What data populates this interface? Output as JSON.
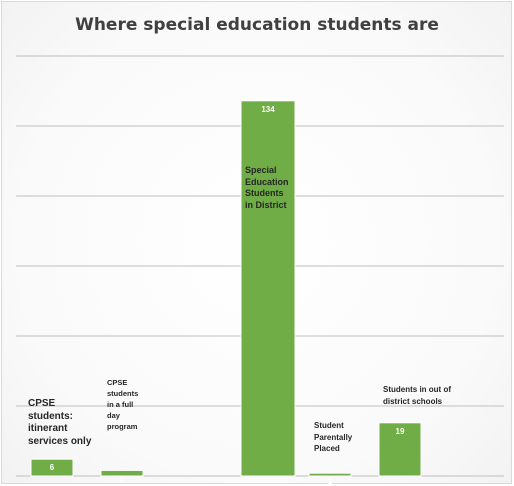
{
  "chart_data": {
    "type": "bar",
    "title": "Where special education students are",
    "categories": [
      "CPSE students: itinerant services only",
      "CPSE students in a full day program",
      "Special Education Students in District",
      "Student Parentally Placed",
      "Students in out of district schools"
    ],
    "values": [
      6,
      2,
      134,
      1,
      19
    ],
    "ylim": [
      0,
      150
    ],
    "grid": true,
    "legend": "none",
    "colors": {
      "bar": "#70ad47",
      "value_label": "#ffffff"
    },
    "labels": [
      {
        "lines": [
          "CPSE",
          "students:",
          "itinerant",
          "services only"
        ]
      },
      {
        "lines": [
          "CPSE",
          "students",
          "in a full",
          "day",
          "program"
        ]
      },
      {
        "lines": [
          "Special",
          "Education",
          "Students",
          "in District"
        ]
      },
      {
        "lines": [
          "Student",
          "Parentally",
          "Placed"
        ]
      },
      {
        "lines": [
          "Students in out of",
          "district schools"
        ]
      }
    ]
  }
}
